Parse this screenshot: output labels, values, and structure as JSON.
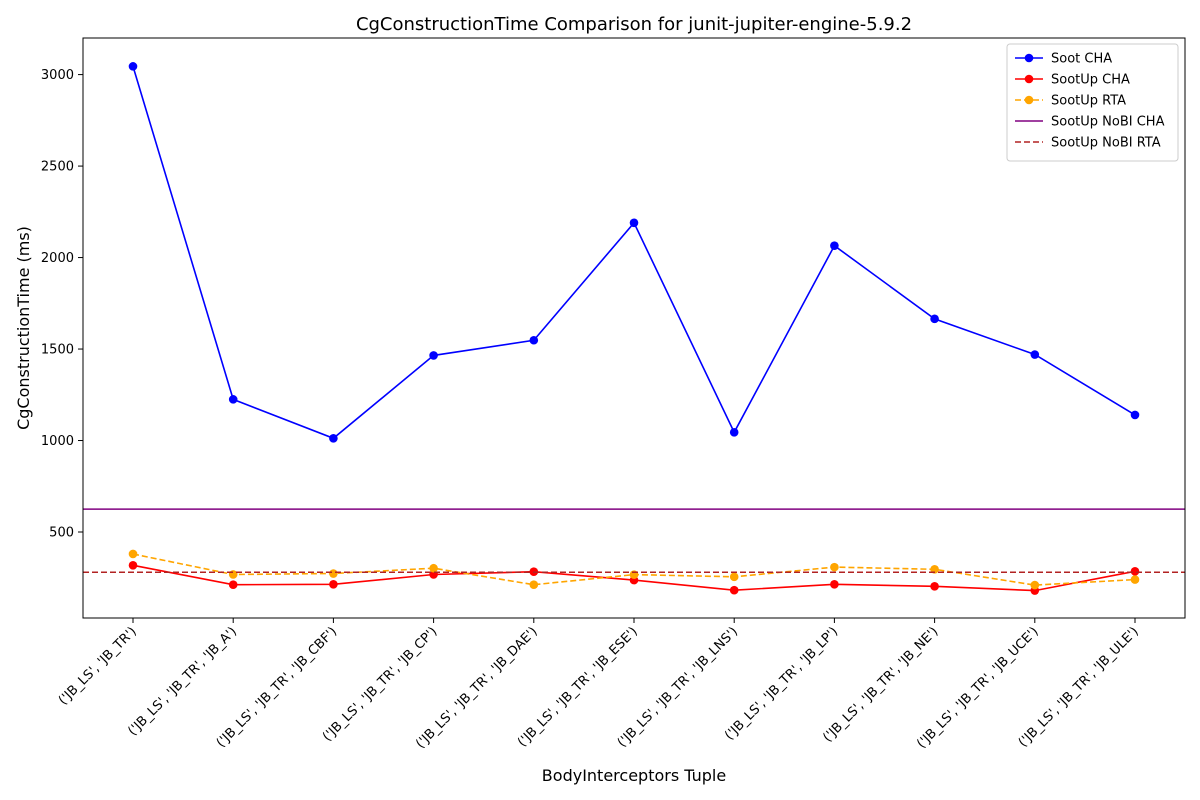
{
  "chart_data": {
    "type": "line",
    "title": "CgConstructionTime Comparison for junit-jupiter-engine-5.9.2",
    "xlabel": "BodyInterceptors Tuple",
    "ylabel": "CgConstructionTime (ms)",
    "ylim": [
      30,
      3200
    ],
    "yticks": [
      500,
      1000,
      1500,
      2000,
      2500,
      3000
    ],
    "grid": false,
    "legend_position": "top-right",
    "categories": [
      "('JB_LS', 'JB_TR')",
      "('JB_LS', 'JB_TR', 'JB_A')",
      "('JB_LS', 'JB_TR', 'JB_CBF')",
      "('JB_LS', 'JB_TR', 'JB_CP')",
      "('JB_LS', 'JB_TR', 'JB_DAE')",
      "('JB_LS', 'JB_TR', 'JB_ESE')",
      "('JB_LS', 'JB_TR', 'JB_LNS')",
      "('JB_LS', 'JB_TR', 'JB_LP')",
      "('JB_LS', 'JB_TR', 'JB_NE')",
      "('JB_LS', 'JB_TR', 'JB_UCE')",
      "('JB_LS', 'JB_TR', 'JB_ULE')"
    ],
    "series": [
      {
        "name": "Soot CHA",
        "kind": "line",
        "color": "#0000ff",
        "dash": "solid",
        "marker": true,
        "values": [
          3045,
          1225,
          1012,
          1465,
          1548,
          2190,
          1045,
          2065,
          1665,
          1470,
          1140
        ]
      },
      {
        "name": "SootUp CHA",
        "kind": "line",
        "color": "#ff0000",
        "dash": "solid",
        "marker": true,
        "values": [
          318,
          212,
          214,
          268,
          283,
          237,
          182,
          214,
          203,
          180,
          285
        ]
      },
      {
        "name": "SootUp RTA",
        "kind": "line",
        "color": "#ffa500",
        "dash": "dashed",
        "marker": true,
        "values": [
          380,
          268,
          273,
          302,
          212,
          267,
          255,
          308,
          296,
          210,
          240
        ]
      },
      {
        "name": "SootUp NoBI CHA",
        "kind": "hline",
        "color": "#800080",
        "dash": "solid",
        "marker": false,
        "value": 625
      },
      {
        "name": "SootUp NoBI RTA",
        "kind": "hline",
        "color": "#b22222",
        "dash": "dashed",
        "marker": false,
        "value": 280
      }
    ]
  }
}
